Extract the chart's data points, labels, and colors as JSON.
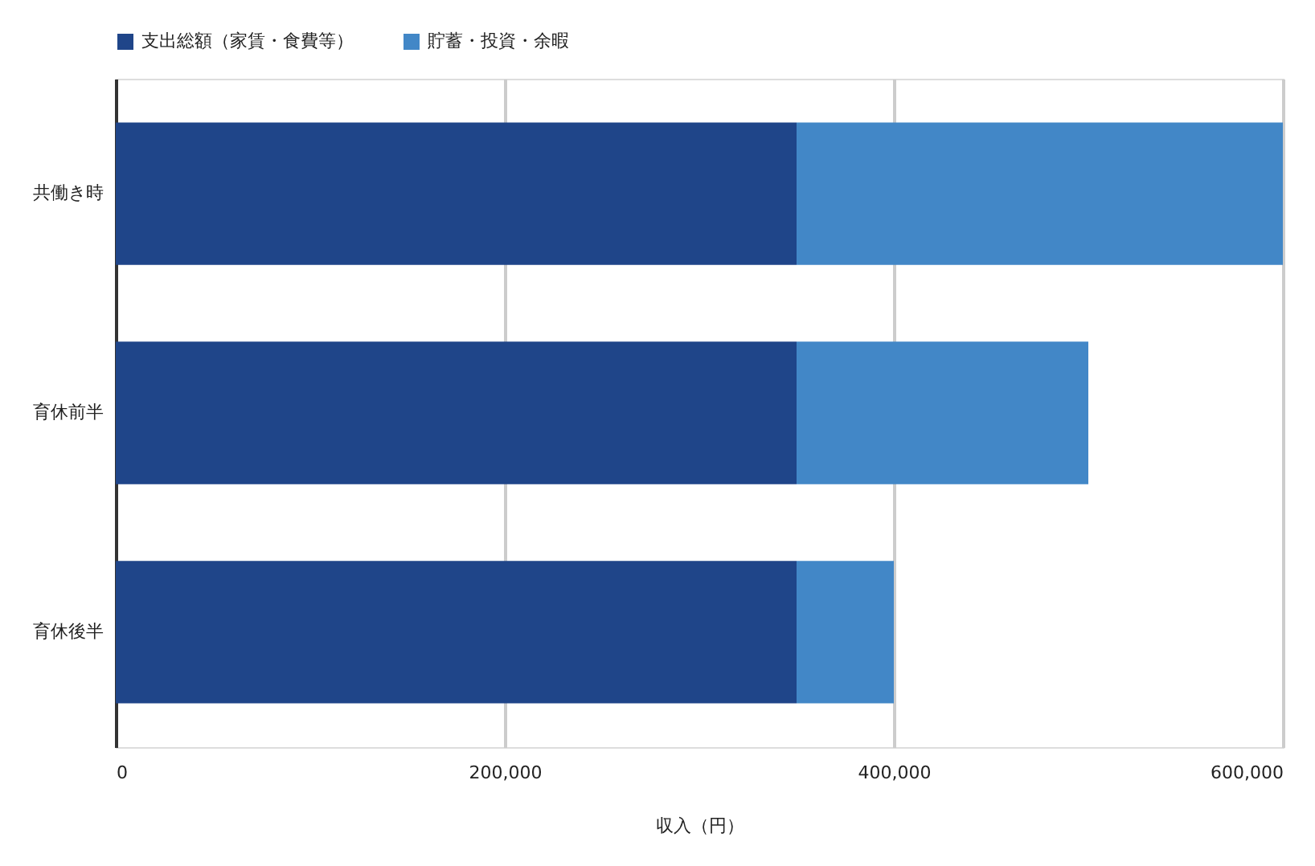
{
  "chart_data": {
    "type": "bar",
    "orientation": "horizontal",
    "stacked": true,
    "categories": [
      "共働き時",
      "育休前半",
      "育休後半"
    ],
    "series": [
      {
        "name": "支出総額（家賃・食費等）",
        "color": "#1f4589",
        "values": [
          350000,
          350000,
          350000
        ]
      },
      {
        "name": "貯蓄・投資・余暇",
        "color": "#4287c7",
        "values": [
          250000,
          150000,
          50000
        ]
      }
    ],
    "xlabel": "収入（円）",
    "xlim": [
      0,
      600000
    ],
    "xticks": [
      {
        "value": 0,
        "label": "0"
      },
      {
        "value": 200000,
        "label": "200,000"
      },
      {
        "value": 400000,
        "label": "400,000"
      },
      {
        "value": 600000,
        "label": "600,000"
      }
    ],
    "grid": "x",
    "legend": "top"
  }
}
